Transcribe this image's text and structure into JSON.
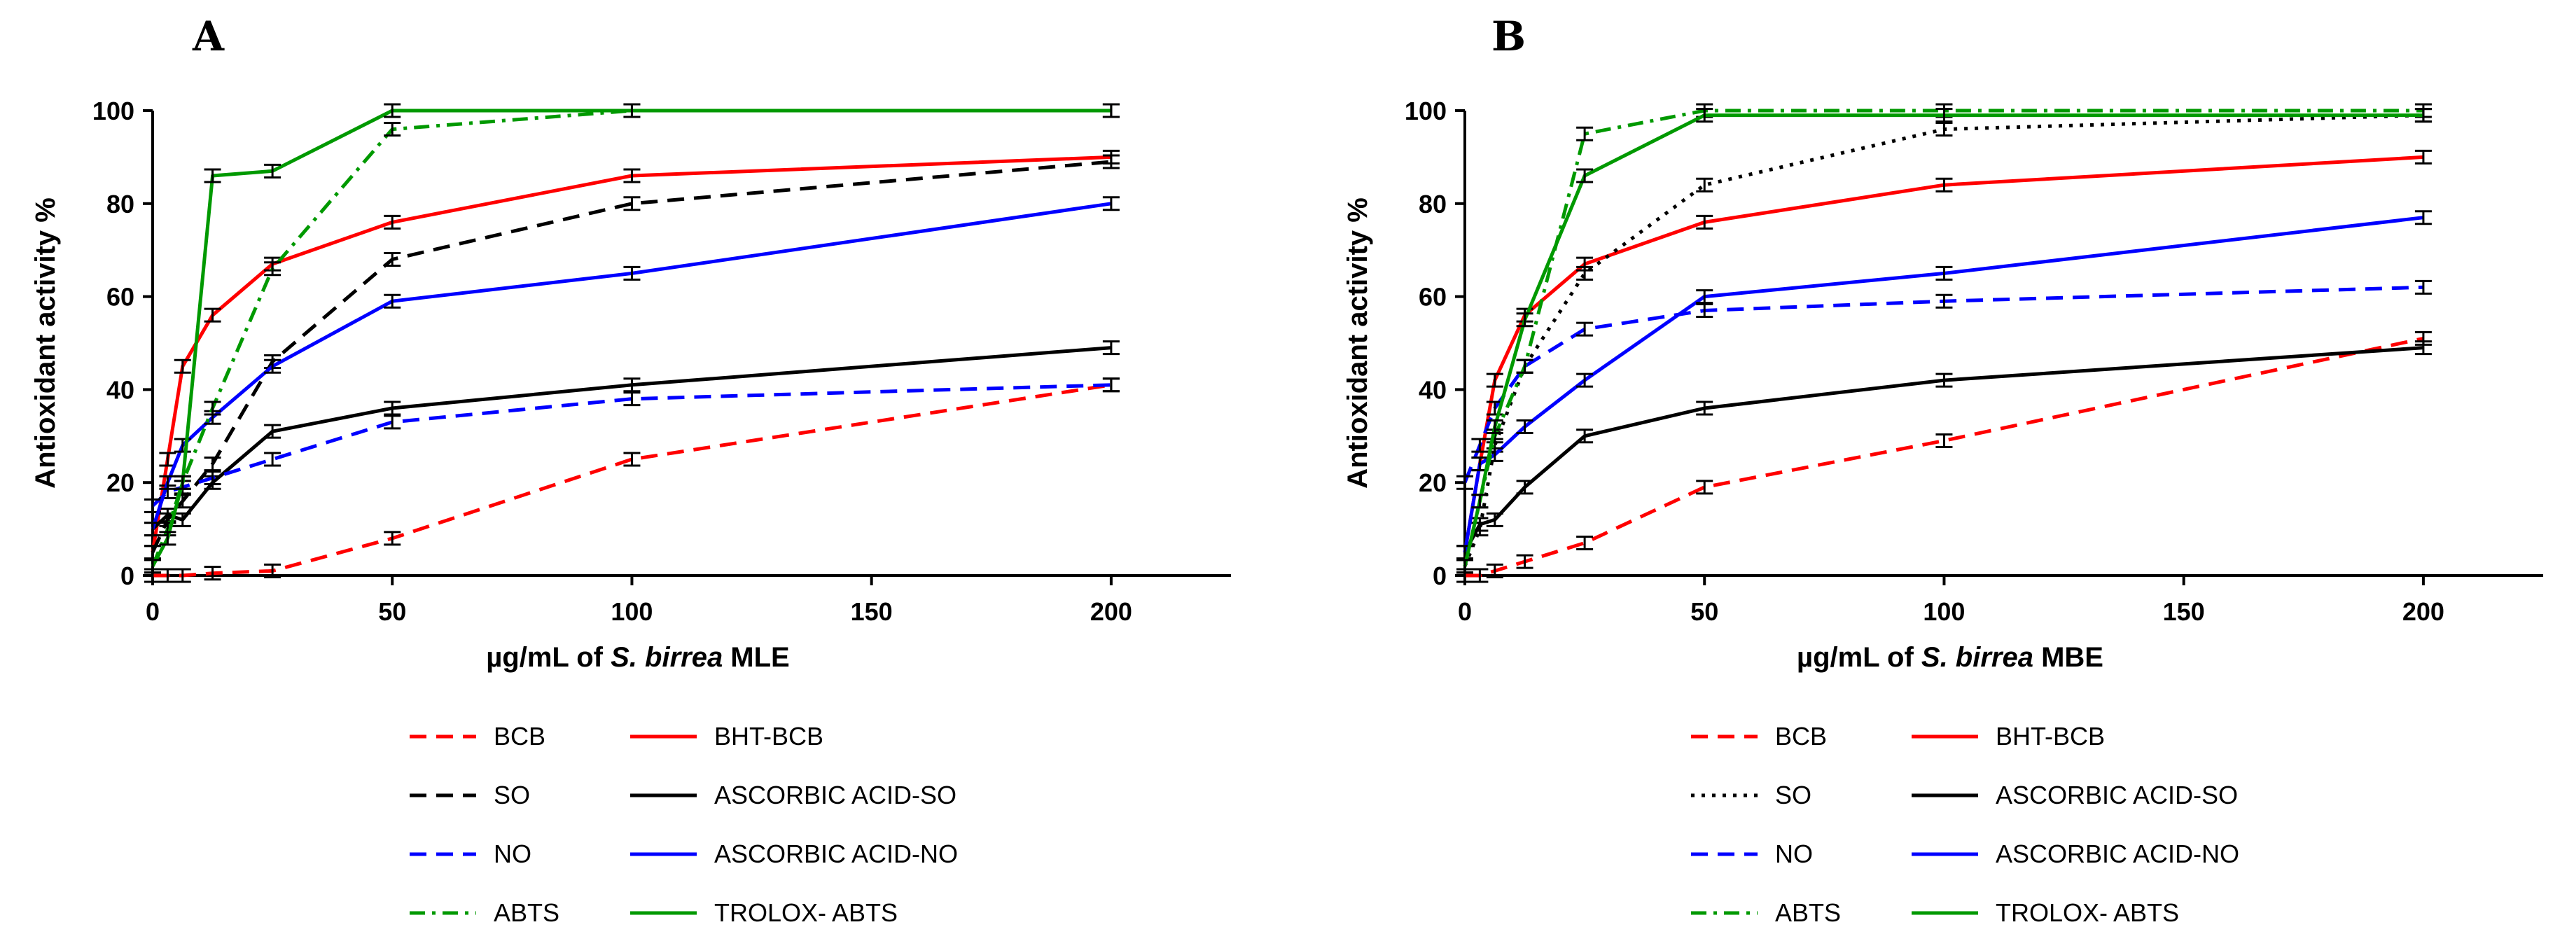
{
  "chart_data": [
    {
      "type": "line",
      "panel": "A",
      "xlabel_prefix": "µg/mL of ",
      "xlabel_species": "S. birrea",
      "xlabel_suffix": " MLE",
      "ylabel": "Antioxidant activity %",
      "xlim": [
        0,
        225
      ],
      "ylim": [
        0,
        100
      ],
      "xticks": [
        0,
        50,
        100,
        150,
        200
      ],
      "yticks": [
        0,
        20,
        40,
        60,
        80,
        100
      ],
      "series": [
        {
          "name": "BCB",
          "color": "#ff0000",
          "dash": "dashed",
          "x": [
            0,
            3.125,
            6.25,
            12.5,
            25,
            50,
            100,
            200
          ],
          "y": [
            0,
            0,
            0,
            0.5,
            1,
            8,
            25,
            41
          ]
        },
        {
          "name": "BHT-BCB",
          "color": "#ff0000",
          "dash": "solid",
          "x": [
            0,
            3.125,
            6.25,
            12.5,
            25,
            50,
            100,
            200
          ],
          "y": [
            5,
            25,
            45,
            56,
            67,
            76,
            86,
            90
          ]
        },
        {
          "name": "SO",
          "color": "#000000",
          "dash": "dashed",
          "x": [
            0,
            3.125,
            6.25,
            12.5,
            25,
            50,
            100,
            200
          ],
          "y": [
            5,
            12,
            16,
            24,
            46,
            68,
            80,
            89
          ]
        },
        {
          "name": "ASCORBIC ACID-SO",
          "color": "#000000",
          "dash": "solid",
          "x": [
            0,
            3.125,
            6.25,
            12.5,
            25,
            50,
            100,
            200
          ],
          "y": [
            10,
            13,
            12,
            20,
            31,
            36,
            41,
            49
          ]
        },
        {
          "name": "NO",
          "color": "#0000ff",
          "dash": "dashed",
          "x": [
            0,
            3.125,
            6.25,
            12.5,
            25,
            50,
            100,
            200
          ],
          "y": [
            15,
            18,
            19,
            21,
            25,
            33,
            38,
            41
          ]
        },
        {
          "name": "ASCORBIC ACID-NO",
          "color": "#0000ff",
          "dash": "solid",
          "x": [
            0,
            3.125,
            6.25,
            12.5,
            25,
            50,
            100,
            200
          ],
          "y": [
            10,
            20,
            28,
            34,
            45,
            59,
            65,
            80
          ]
        },
        {
          "name": "ABTS",
          "color": "#009900",
          "dash": "dashdot",
          "x": [
            0,
            3.125,
            6.25,
            12.5,
            25,
            50,
            100,
            200
          ],
          "y": [
            2,
            10,
            20,
            36,
            66,
            96,
            100,
            100
          ]
        },
        {
          "name": "TROLOX- ABTS",
          "color": "#009900",
          "dash": "solid",
          "x": [
            0,
            3.125,
            6.25,
            12.5,
            25,
            50,
            100,
            200
          ],
          "y": [
            2,
            8,
            20,
            86,
            87,
            100,
            100,
            100
          ]
        }
      ]
    },
    {
      "type": "line",
      "panel": "B",
      "xlabel_prefix": "µg/mL of ",
      "xlabel_species": "S. birrea",
      "xlabel_suffix": " MBE",
      "ylabel": "Antioxidant activity %",
      "xlim": [
        0,
        225
      ],
      "ylim": [
        0,
        100
      ],
      "xticks": [
        0,
        50,
        100,
        150,
        200
      ],
      "yticks": [
        0,
        20,
        40,
        60,
        80,
        100
      ],
      "series": [
        {
          "name": "BCB",
          "color": "#ff0000",
          "dash": "dashed",
          "x": [
            0,
            3.125,
            6.25,
            12.5,
            25,
            50,
            100,
            200
          ],
          "y": [
            0,
            0,
            1,
            3,
            7,
            19,
            29,
            51
          ]
        },
        {
          "name": "BHT-BCB",
          "color": "#ff0000",
          "dash": "solid",
          "x": [
            0,
            3.125,
            6.25,
            12.5,
            25,
            50,
            100,
            200
          ],
          "y": [
            5,
            24,
            42,
            56,
            67,
            76,
            84,
            90
          ]
        },
        {
          "name": "SO",
          "color": "#000000",
          "dash": "dotted",
          "x": [
            0,
            3.125,
            6.25,
            12.5,
            25,
            50,
            100,
            200
          ],
          "y": [
            2,
            10,
            28,
            45,
            65,
            84,
            96,
            99
          ]
        },
        {
          "name": "ASCORBIC ACID-SO",
          "color": "#000000",
          "dash": "solid",
          "x": [
            0,
            3.125,
            6.25,
            12.5,
            25,
            50,
            100,
            200
          ],
          "y": [
            5,
            11,
            12,
            19,
            30,
            36,
            42,
            49
          ]
        },
        {
          "name": "NO",
          "color": "#0000ff",
          "dash": "dashed",
          "x": [
            0,
            3.125,
            6.25,
            12.5,
            25,
            50,
            100,
            200
          ],
          "y": [
            20,
            28,
            36,
            45,
            53,
            57,
            59,
            62
          ]
        },
        {
          "name": "ASCORBIC ACID-NO",
          "color": "#0000ff",
          "dash": "solid",
          "x": [
            0,
            3.125,
            6.25,
            12.5,
            25,
            50,
            100,
            200
          ],
          "y": [
            5,
            24,
            26,
            32,
            42,
            60,
            65,
            77
          ]
        },
        {
          "name": "ABTS",
          "color": "#009900",
          "dash": "dashdot",
          "x": [
            0,
            3.125,
            6.25,
            12.5,
            25,
            50,
            100,
            200
          ],
          "y": [
            2,
            16,
            30,
            45,
            95,
            100,
            100,
            100
          ]
        },
        {
          "name": "TROLOX- ABTS",
          "color": "#009900",
          "dash": "solid",
          "x": [
            0,
            3.125,
            6.25,
            12.5,
            25,
            50,
            100,
            200
          ],
          "y": [
            2,
            16,
            32,
            55,
            86,
            99,
            99,
            99
          ]
        }
      ]
    }
  ]
}
